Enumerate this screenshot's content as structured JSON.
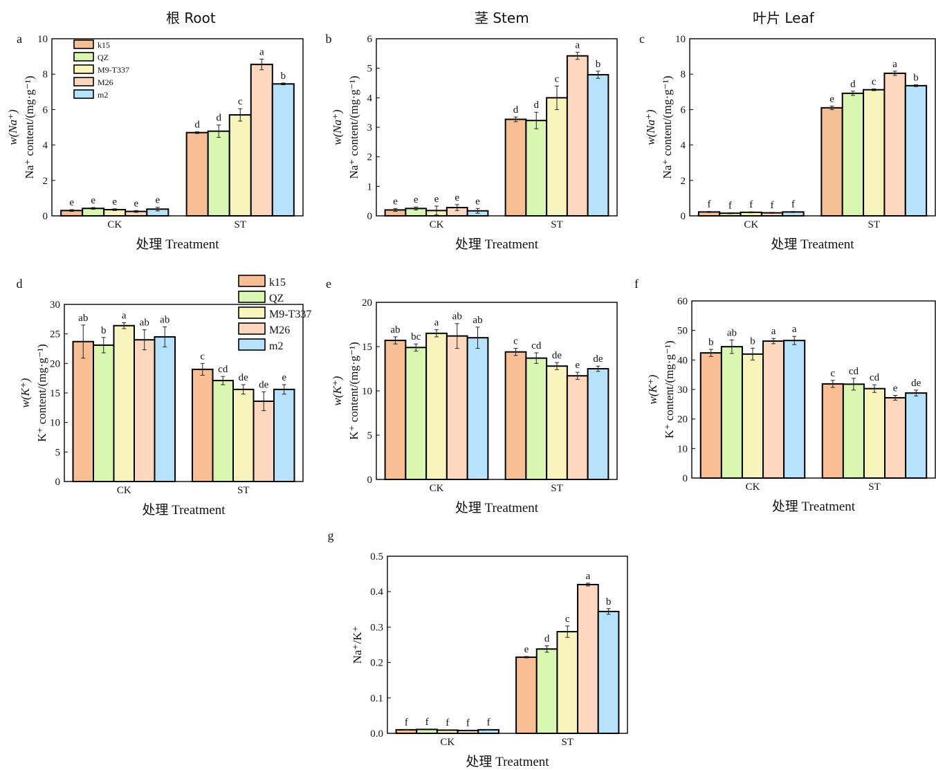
{
  "column_titles": [
    "根 Root",
    "茎 Stem",
    "叶片 Leaf"
  ],
  "colors": {
    "k15": "#f8bf95",
    "QZ": "#d9f7b0",
    "M9-T337": "#f7f4bc",
    "M26": "#fdd8bf",
    "m2": "#b7e2fb",
    "axis": "#000000",
    "error_bar": "#222222"
  },
  "chart_data": [
    {
      "type": "bar",
      "panel": "a",
      "title": "",
      "xlabel": "处理 Treatment",
      "ylabel_lines": [
        "w(Na⁺)",
        "Na⁺ content/(mg·g⁻¹)"
      ],
      "categories": [
        "CK",
        "ST"
      ],
      "ylim": [
        0,
        10
      ],
      "yticks": [
        0,
        2,
        4,
        6,
        8,
        10
      ],
      "legend": "top-left",
      "series": [
        {
          "name": "k15",
          "values": [
            0.3,
            4.7
          ],
          "errors": [
            0.05,
            0.05
          ],
          "letters": [
            "e",
            "d"
          ]
        },
        {
          "name": "QZ",
          "values": [
            0.42,
            4.78
          ],
          "errors": [
            0.05,
            0.35
          ],
          "letters": [
            "e",
            "d"
          ]
        },
        {
          "name": "M9-T337",
          "values": [
            0.35,
            5.7
          ],
          "errors": [
            0.05,
            0.35
          ],
          "letters": [
            "e",
            "c"
          ]
        },
        {
          "name": "M26",
          "values": [
            0.25,
            8.55
          ],
          "errors": [
            0.05,
            0.3
          ],
          "letters": [
            "e",
            "a"
          ]
        },
        {
          "name": "m2",
          "values": [
            0.38,
            7.45
          ],
          "errors": [
            0.1,
            0.05
          ],
          "letters": [
            "e",
            "b"
          ]
        }
      ]
    },
    {
      "type": "bar",
      "panel": "b",
      "title": "",
      "xlabel": "处理 Treatment",
      "ylabel_lines": [
        "w(Na⁺)",
        "Na⁺ content/(mg·g⁻¹)"
      ],
      "categories": [
        "CK",
        "ST"
      ],
      "ylim": [
        0,
        6
      ],
      "yticks": [
        0,
        1,
        2,
        3,
        4,
        5,
        6
      ],
      "legend": "none",
      "series": [
        {
          "name": "k15",
          "values": [
            0.2,
            3.27
          ],
          "errors": [
            0.05,
            0.08
          ],
          "letters": [
            "e",
            "d"
          ]
        },
        {
          "name": "QZ",
          "values": [
            0.25,
            3.23
          ],
          "errors": [
            0.05,
            0.28
          ],
          "letters": [
            "e",
            "d"
          ]
        },
        {
          "name": "M9-T337",
          "values": [
            0.18,
            4.0
          ],
          "errors": [
            0.15,
            0.4
          ],
          "letters": [
            "e",
            "c"
          ]
        },
        {
          "name": "M26",
          "values": [
            0.28,
            5.42
          ],
          "errors": [
            0.1,
            0.12
          ],
          "letters": [
            "e",
            "a"
          ]
        },
        {
          "name": "m2",
          "values": [
            0.17,
            4.78
          ],
          "errors": [
            0.08,
            0.12
          ],
          "letters": [
            "e",
            "b"
          ]
        }
      ]
    },
    {
      "type": "bar",
      "panel": "c",
      "title": "",
      "xlabel": "处理 Treatment",
      "ylabel_lines": [
        "w(Na⁺)",
        "Na⁺ content/(mg·g⁻¹)"
      ],
      "categories": [
        "CK",
        "ST"
      ],
      "ylim": [
        0,
        10
      ],
      "yticks": [
        0,
        2,
        4,
        6,
        8,
        10
      ],
      "legend": "none",
      "series": [
        {
          "name": "k15",
          "values": [
            0.22,
            6.1
          ],
          "errors": [
            0.03,
            0.1
          ],
          "letters": [
            "f",
            "e"
          ]
        },
        {
          "name": "QZ",
          "values": [
            0.15,
            6.92
          ],
          "errors": [
            0.03,
            0.12
          ],
          "letters": [
            "f",
            "d"
          ]
        },
        {
          "name": "M9-T337",
          "values": [
            0.2,
            7.12
          ],
          "errors": [
            0.03,
            0.05
          ],
          "letters": [
            "f",
            "c"
          ]
        },
        {
          "name": "M26",
          "values": [
            0.17,
            8.05
          ],
          "errors": [
            0.03,
            0.12
          ],
          "letters": [
            "f",
            "a"
          ]
        },
        {
          "name": "m2",
          "values": [
            0.22,
            7.35
          ],
          "errors": [
            0.03,
            0.05
          ],
          "letters": [
            "f",
            "b"
          ]
        }
      ]
    },
    {
      "type": "bar",
      "panel": "d",
      "title": "",
      "xlabel": "处理 Treatment",
      "ylabel_lines": [
        "w(K⁺)",
        "K⁺ content/(mg·g⁻¹)"
      ],
      "categories": [
        "CK",
        "ST"
      ],
      "ylim": [
        0,
        30
      ],
      "yticks": [
        0,
        5,
        10,
        15,
        20,
        25,
        30
      ],
      "legend": "top-right",
      "series": [
        {
          "name": "k15",
          "values": [
            23.7,
            19.0
          ],
          "errors": [
            2.8,
            1.0
          ],
          "letters": [
            "ab",
            "c"
          ]
        },
        {
          "name": "QZ",
          "values": [
            23.1,
            17.1
          ],
          "errors": [
            1.3,
            0.7
          ],
          "letters": [
            "b",
            "cd"
          ]
        },
        {
          "name": "M9-T337",
          "values": [
            26.4,
            15.6
          ],
          "errors": [
            0.5,
            0.8
          ],
          "letters": [
            "a",
            "de"
          ]
        },
        {
          "name": "M26",
          "values": [
            24.0,
            13.6
          ],
          "errors": [
            1.7,
            1.6
          ],
          "letters": [
            "ab",
            "de"
          ]
        },
        {
          "name": "m2",
          "values": [
            24.5,
            15.6
          ],
          "errors": [
            1.7,
            0.8
          ],
          "letters": [
            "ab",
            "e"
          ]
        }
      ]
    },
    {
      "type": "bar",
      "panel": "e",
      "title": "",
      "xlabel": "处理 Treatment",
      "ylabel_lines": [
        "w(K⁺)",
        "K⁺ content/(mg·g⁻¹)"
      ],
      "categories": [
        "CK",
        "ST"
      ],
      "ylim": [
        0,
        20
      ],
      "yticks": [
        0,
        5,
        10,
        15,
        20
      ],
      "legend": "none",
      "series": [
        {
          "name": "k15",
          "values": [
            15.7,
            14.4
          ],
          "errors": [
            0.4,
            0.4
          ],
          "letters": [
            "ab",
            "c"
          ]
        },
        {
          "name": "QZ",
          "values": [
            14.9,
            13.7
          ],
          "errors": [
            0.4,
            0.6
          ],
          "letters": [
            "bc",
            "cd"
          ]
        },
        {
          "name": "M9-T337",
          "values": [
            16.5,
            12.8
          ],
          "errors": [
            0.4,
            0.4
          ],
          "letters": [
            "a",
            "de"
          ]
        },
        {
          "name": "M26",
          "values": [
            16.2,
            11.7
          ],
          "errors": [
            1.4,
            0.4
          ],
          "letters": [
            "ab",
            "e"
          ]
        },
        {
          "name": "m2",
          "values": [
            16.0,
            12.5
          ],
          "errors": [
            1.2,
            0.3
          ],
          "letters": [
            "ab",
            "de"
          ]
        }
      ]
    },
    {
      "type": "bar",
      "panel": "f",
      "title": "",
      "xlabel": "处理 Treatment",
      "ylabel_lines": [
        "w(K⁺)",
        "K⁺ content/(mg·g⁻¹)"
      ],
      "categories": [
        "CK",
        "ST"
      ],
      "ylim": [
        0,
        60
      ],
      "yticks": [
        0,
        10,
        20,
        30,
        40,
        50,
        60
      ],
      "legend": "none",
      "series": [
        {
          "name": "k15",
          "values": [
            42.4,
            31.9
          ],
          "errors": [
            1.2,
            1.2
          ],
          "letters": [
            "b",
            "c"
          ]
        },
        {
          "name": "QZ",
          "values": [
            44.5,
            31.8
          ],
          "errors": [
            2.3,
            2.0
          ],
          "letters": [
            "ab",
            "cd"
          ]
        },
        {
          "name": "M9-T337",
          "values": [
            42.0,
            30.3
          ],
          "errors": [
            2.0,
            1.3
          ],
          "letters": [
            "b",
            "cd"
          ]
        },
        {
          "name": "M26",
          "values": [
            46.4,
            27.2
          ],
          "errors": [
            0.9,
            0.8
          ],
          "letters": [
            "a",
            "e"
          ]
        },
        {
          "name": "m2",
          "values": [
            46.6,
            28.8
          ],
          "errors": [
            1.4,
            1.0
          ],
          "letters": [
            "a",
            "de"
          ]
        }
      ]
    },
    {
      "type": "bar",
      "panel": "g",
      "title": "",
      "xlabel": "处理 Treatment",
      "ylabel_lines": [
        "Na⁺/K⁺"
      ],
      "categories": [
        "CK",
        "ST"
      ],
      "ylim": [
        0,
        0.5
      ],
      "yticks": [
        0.0,
        0.1,
        0.2,
        0.3,
        0.4,
        0.5
      ],
      "tick_decimals": 1,
      "legend": "none",
      "series": [
        {
          "name": "k15",
          "values": [
            0.01,
            0.215
          ],
          "errors": [
            0.001,
            0.002
          ],
          "letters": [
            "f",
            "e"
          ]
        },
        {
          "name": "QZ",
          "values": [
            0.011,
            0.238
          ],
          "errors": [
            0.001,
            0.009
          ],
          "letters": [
            "f",
            "d"
          ]
        },
        {
          "name": "M9-T337",
          "values": [
            0.009,
            0.287
          ],
          "errors": [
            0.001,
            0.016
          ],
          "letters": [
            "f",
            "c"
          ]
        },
        {
          "name": "M26",
          "values": [
            0.008,
            0.42
          ],
          "errors": [
            0.001,
            0.004
          ],
          "letters": [
            "f",
            "a"
          ]
        },
        {
          "name": "m2",
          "values": [
            0.01,
            0.344
          ],
          "errors": [
            0.001,
            0.008
          ],
          "letters": [
            "f",
            "b"
          ]
        }
      ]
    }
  ]
}
